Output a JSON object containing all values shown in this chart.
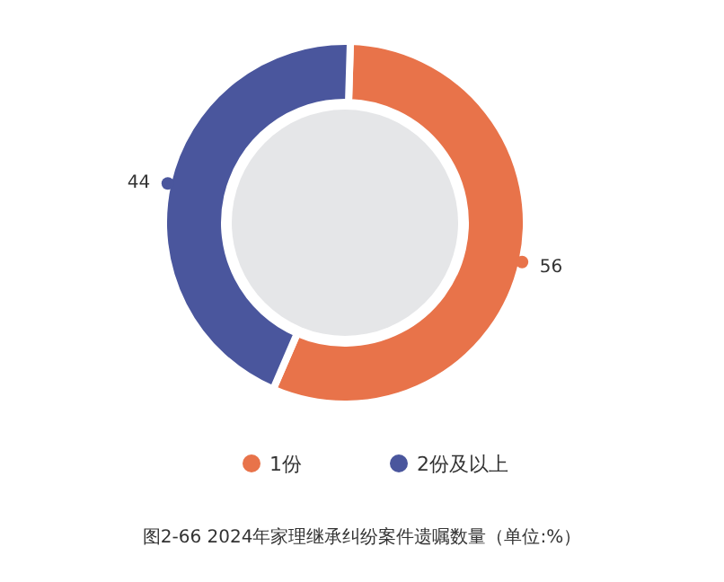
{
  "chart_data": {
    "type": "donut",
    "title": "图2-66  2024年家理继承纠纷案件遗嘱数量（单位:%）",
    "categories": [
      "1份",
      "2份及以上"
    ],
    "values": [
      56,
      44
    ],
    "colors": [
      "#e8734a",
      "#4a569d"
    ],
    "data_labels": true,
    "legend": "bottom"
  }
}
